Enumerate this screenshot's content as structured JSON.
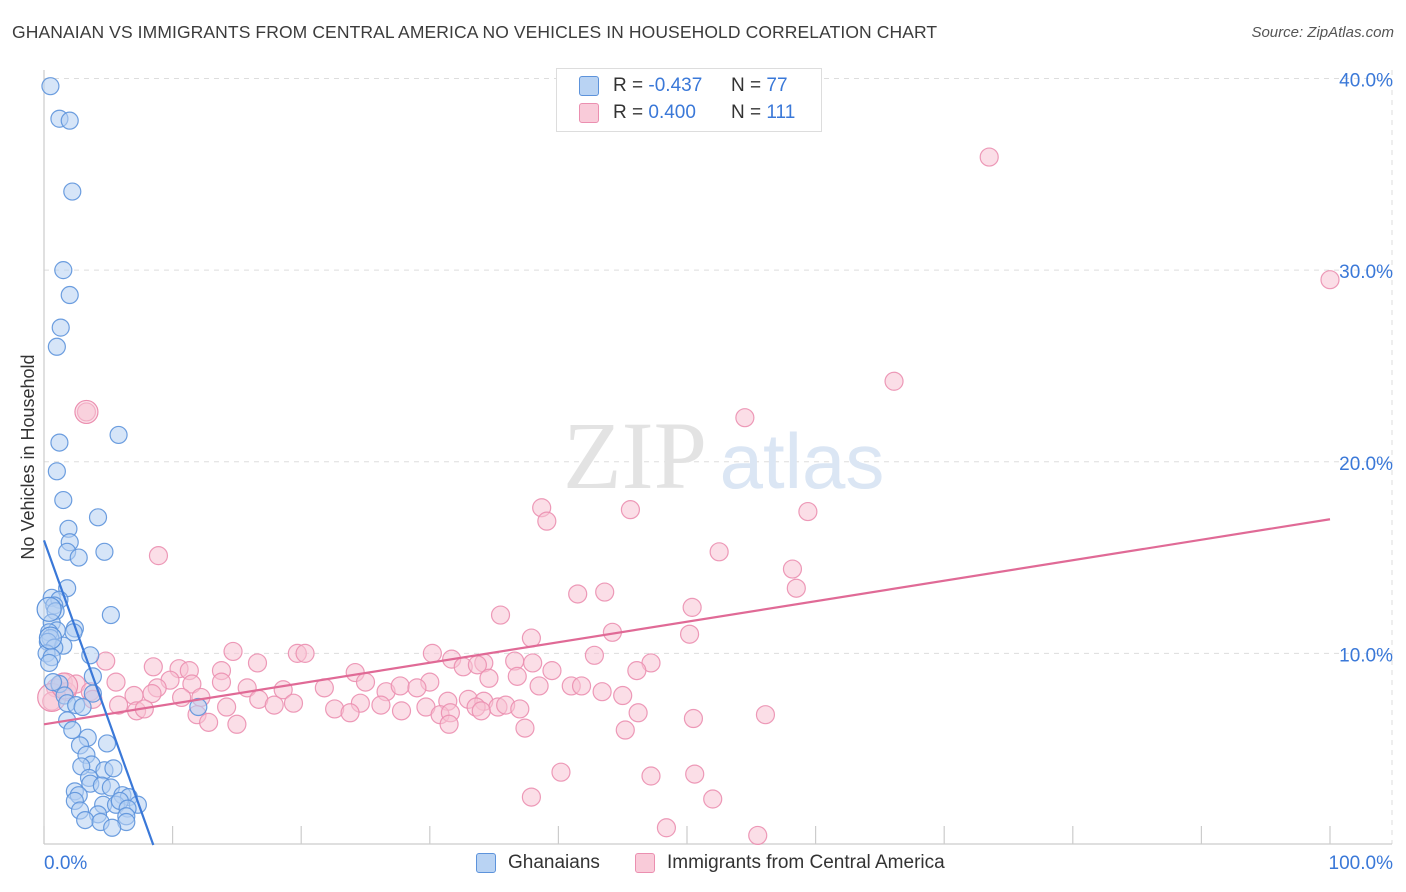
{
  "title": "GHANAIAN VS IMMIGRANTS FROM CENTRAL AMERICA NO VEHICLES IN HOUSEHOLD CORRELATION CHART",
  "source": "Source: ZipAtlas.com",
  "watermark": {
    "zip": "ZIP",
    "atlas": "atlas"
  },
  "colors": {
    "blue": "#3a78d8",
    "blue_fill": "#a9c8f0",
    "pink": "#e06a96",
    "pink_fill": "#f5b8cc",
    "grid": "#dddddd"
  },
  "legend_top": {
    "rows": [
      {
        "r_label": "R =",
        "r_value": "-0.437",
        "n_label": "N =",
        "n_value": "77"
      },
      {
        "r_label": "R =",
        "r_value": "0.400",
        "n_label": "N =",
        "n_value": "111"
      }
    ]
  },
  "legend_bottom": {
    "items": [
      "Ghanaians",
      "Immigrants from Central America"
    ]
  },
  "chart_data": {
    "type": "scatter",
    "title": "GHANAIAN VS IMMIGRANTS FROM CENTRAL AMERICA NO VEHICLES IN HOUSEHOLD CORRELATION CHART",
    "xlabel": "",
    "ylabel": "No Vehicles in Household",
    "xlim": [
      0,
      100
    ],
    "ylim": [
      0,
      40
    ],
    "x_tick_labels": [
      "0.0%",
      "100.0%"
    ],
    "y_ticks": [
      10,
      20,
      30,
      40
    ],
    "y_tick_labels": [
      "10.0%",
      "20.0%",
      "30.0%",
      "40.0%"
    ],
    "grid": true,
    "legend_position": "top-center",
    "series": [
      {
        "name": "Ghanaians",
        "r": -0.437,
        "n": 77,
        "trend": {
          "x0": 0,
          "y0": 15.9,
          "x1": 8.5,
          "y1": 0
        },
        "points": [
          [
            0.5,
            39.6
          ],
          [
            1.2,
            37.9
          ],
          [
            2.0,
            37.8
          ],
          [
            2.2,
            34.1
          ],
          [
            1.5,
            30.0
          ],
          [
            2.0,
            28.7
          ],
          [
            1.3,
            27.0
          ],
          [
            1.0,
            26.0
          ],
          [
            5.8,
            21.4
          ],
          [
            1.2,
            21.0
          ],
          [
            1.0,
            19.5
          ],
          [
            1.5,
            18.0
          ],
          [
            4.2,
            17.1
          ],
          [
            1.9,
            16.5
          ],
          [
            2.0,
            15.8
          ],
          [
            1.8,
            15.3
          ],
          [
            2.7,
            15.0
          ],
          [
            4.7,
            15.3
          ],
          [
            1.8,
            13.4
          ],
          [
            0.6,
            12.9
          ],
          [
            1.2,
            12.8
          ],
          [
            0.8,
            12.5
          ],
          [
            0.9,
            12.2
          ],
          [
            5.2,
            12.0
          ],
          [
            0.6,
            11.6
          ],
          [
            1.0,
            11.2
          ],
          [
            2.4,
            11.3
          ],
          [
            2.3,
            11.1
          ],
          [
            0.4,
            11.1
          ],
          [
            0.5,
            10.8
          ],
          [
            0.3,
            10.6
          ],
          [
            1.5,
            10.4
          ],
          [
            0.8,
            10.3
          ],
          [
            0.2,
            10.0
          ],
          [
            0.6,
            9.8
          ],
          [
            3.6,
            9.9
          ],
          [
            0.4,
            9.5
          ],
          [
            3.8,
            8.8
          ],
          [
            1.2,
            8.4
          ],
          [
            0.7,
            8.5
          ],
          [
            1.6,
            7.8
          ],
          [
            3.8,
            7.9
          ],
          [
            1.8,
            7.4
          ],
          [
            2.5,
            7.3
          ],
          [
            3.0,
            7.2
          ],
          [
            12.0,
            7.2
          ],
          [
            1.8,
            6.5
          ],
          [
            2.2,
            6.0
          ],
          [
            3.4,
            5.6
          ],
          [
            2.8,
            5.2
          ],
          [
            4.9,
            5.3
          ],
          [
            3.3,
            4.7
          ],
          [
            3.7,
            4.2
          ],
          [
            2.9,
            4.1
          ],
          [
            4.7,
            3.9
          ],
          [
            5.4,
            4.0
          ],
          [
            3.5,
            3.5
          ],
          [
            3.6,
            3.2
          ],
          [
            4.5,
            3.1
          ],
          [
            5.2,
            3.0
          ],
          [
            2.4,
            2.8
          ],
          [
            2.7,
            2.6
          ],
          [
            6.1,
            2.6
          ],
          [
            6.6,
            2.5
          ],
          [
            2.4,
            2.3
          ],
          [
            4.6,
            2.1
          ],
          [
            5.6,
            2.1
          ],
          [
            5.9,
            2.3
          ],
          [
            7.3,
            2.1
          ],
          [
            2.8,
            1.8
          ],
          [
            6.5,
            1.9
          ],
          [
            4.2,
            1.6
          ],
          [
            6.4,
            1.5
          ],
          [
            3.2,
            1.3
          ],
          [
            4.4,
            1.2
          ],
          [
            6.4,
            1.2
          ],
          [
            5.3,
            0.9
          ]
        ]
      },
      {
        "name": "Immigrants from Central America",
        "r": 0.4,
        "n": 111,
        "trend": {
          "x0": 0,
          "y0": 6.3,
          "x1": 100,
          "y1": 17.0
        },
        "points": [
          [
            73.5,
            35.9
          ],
          [
            100,
            29.5
          ],
          [
            66.1,
            24.2
          ],
          [
            3.3,
            22.6
          ],
          [
            54.5,
            22.3
          ],
          [
            38.7,
            17.6
          ],
          [
            45.6,
            17.5
          ],
          [
            59.4,
            17.4
          ],
          [
            39.1,
            16.9
          ],
          [
            52.5,
            15.3
          ],
          [
            8.9,
            15.1
          ],
          [
            58.2,
            14.4
          ],
          [
            58.5,
            13.4
          ],
          [
            41.5,
            13.1
          ],
          [
            43.6,
            13.2
          ],
          [
            50.4,
            12.4
          ],
          [
            35.5,
            12.0
          ],
          [
            44.2,
            11.1
          ],
          [
            50.2,
            11.0
          ],
          [
            37.9,
            10.8
          ],
          [
            14.7,
            10.1
          ],
          [
            19.7,
            10.0
          ],
          [
            20.3,
            10.0
          ],
          [
            30.2,
            10.0
          ],
          [
            34.2,
            9.5
          ],
          [
            31.7,
            9.7
          ],
          [
            36.6,
            9.6
          ],
          [
            38.0,
            9.5
          ],
          [
            42.8,
            9.9
          ],
          [
            47.2,
            9.5
          ],
          [
            4.8,
            9.6
          ],
          [
            8.5,
            9.3
          ],
          [
            10.5,
            9.2
          ],
          [
            11.3,
            9.1
          ],
          [
            13.8,
            9.1
          ],
          [
            16.6,
            9.5
          ],
          [
            24.2,
            9.0
          ],
          [
            32.6,
            9.3
          ],
          [
            33.7,
            9.4
          ],
          [
            39.5,
            9.1
          ],
          [
            46.1,
            9.1
          ],
          [
            9.8,
            8.6
          ],
          [
            11.5,
            8.4
          ],
          [
            13.8,
            8.5
          ],
          [
            25.0,
            8.5
          ],
          [
            30.0,
            8.5
          ],
          [
            34.6,
            8.7
          ],
          [
            36.8,
            8.8
          ],
          [
            38.5,
            8.3
          ],
          [
            41.0,
            8.3
          ],
          [
            15.8,
            8.2
          ],
          [
            18.6,
            8.1
          ],
          [
            21.8,
            8.2
          ],
          [
            26.6,
            8.0
          ],
          [
            27.7,
            8.3
          ],
          [
            29.0,
            8.2
          ],
          [
            43.4,
            8.0
          ],
          [
            45.0,
            7.8
          ],
          [
            41.8,
            8.3
          ],
          [
            1.5,
            8.5
          ],
          [
            0.9,
            8.2
          ],
          [
            1.8,
            8.0
          ],
          [
            2.5,
            8.4
          ],
          [
            3.6,
            8.0
          ],
          [
            3.8,
            7.6
          ],
          [
            5.6,
            8.5
          ],
          [
            7.0,
            7.8
          ],
          [
            8.8,
            8.2
          ],
          [
            8.4,
            7.9
          ],
          [
            10.7,
            7.7
          ],
          [
            12.2,
            7.7
          ],
          [
            16.7,
            7.6
          ],
          [
            19.4,
            7.4
          ],
          [
            22.6,
            7.1
          ],
          [
            24.6,
            7.4
          ],
          [
            26.2,
            7.3
          ],
          [
            27.8,
            7.0
          ],
          [
            29.7,
            7.2
          ],
          [
            31.4,
            7.5
          ],
          [
            33.0,
            7.6
          ],
          [
            34.2,
            7.5
          ],
          [
            35.3,
            7.2
          ],
          [
            35.9,
            7.3
          ],
          [
            0.6,
            7.5
          ],
          [
            5.8,
            7.3
          ],
          [
            7.2,
            7.0
          ],
          [
            7.8,
            7.1
          ],
          [
            11.9,
            6.8
          ],
          [
            14.2,
            7.2
          ],
          [
            17.9,
            7.3
          ],
          [
            23.8,
            6.9
          ],
          [
            30.8,
            6.8
          ],
          [
            31.6,
            6.9
          ],
          [
            33.6,
            7.2
          ],
          [
            34.0,
            7.0
          ],
          [
            37.0,
            7.1
          ],
          [
            46.2,
            6.9
          ],
          [
            50.5,
            6.6
          ],
          [
            56.1,
            6.8
          ],
          [
            12.8,
            6.4
          ],
          [
            15.0,
            6.3
          ],
          [
            31.5,
            6.3
          ],
          [
            37.4,
            6.1
          ],
          [
            45.2,
            6.0
          ],
          [
            50.6,
            3.7
          ],
          [
            40.2,
            3.8
          ],
          [
            37.9,
            2.5
          ],
          [
            52.0,
            2.4
          ],
          [
            48.4,
            0.9
          ],
          [
            55.5,
            0.5
          ],
          [
            47.2,
            3.6
          ]
        ]
      }
    ]
  }
}
